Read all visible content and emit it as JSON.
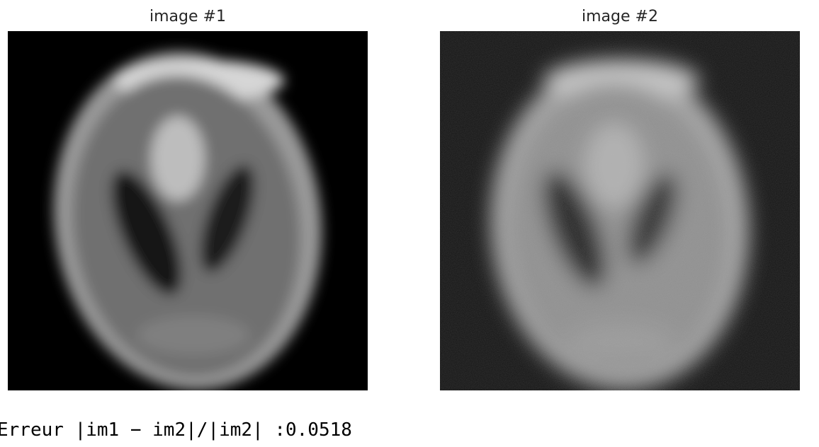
{
  "figure": {
    "panels": [
      {
        "title": "image #1",
        "background": "#000000"
      },
      {
        "title": "image #2",
        "background": "#141414"
      }
    ]
  },
  "output": {
    "text": "Erreur |im1 − im2|/|im2| :0.0518"
  }
}
